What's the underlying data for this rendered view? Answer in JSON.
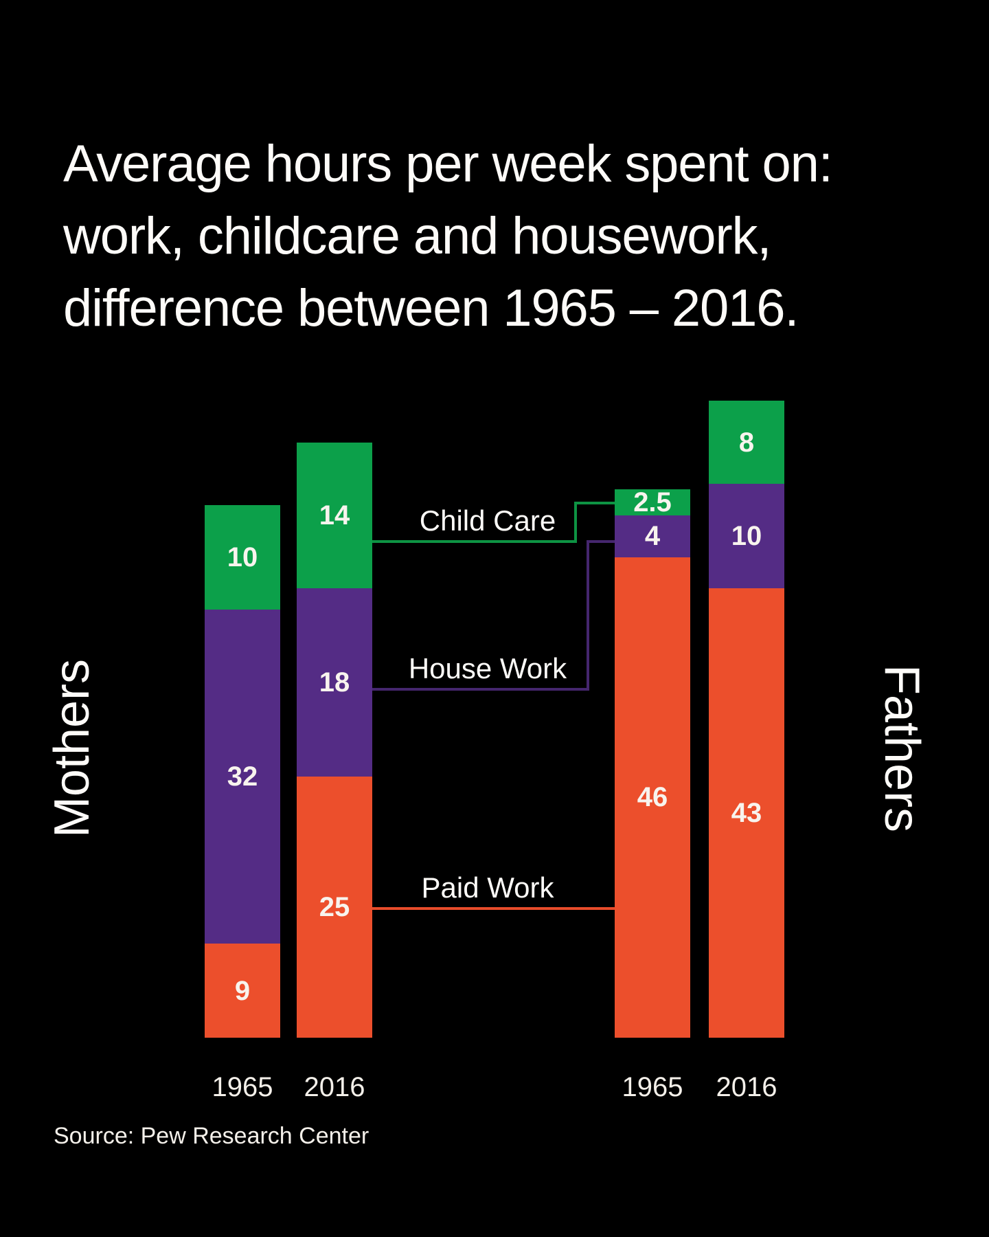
{
  "title": {
    "lines": [
      "Average hours per week spent on:",
      "work, childcare and housework,",
      "difference between 1965 – 2016."
    ]
  },
  "group_labels": {
    "left": "Mothers",
    "right": "Fathers"
  },
  "legend": {
    "child_care": "Child Care",
    "house_work": "House Work",
    "paid_work": "Paid Work"
  },
  "source": "Source: Pew Research Center",
  "colors": {
    "background": "#000000",
    "text": "#fdfbf8",
    "child_care": "#0ca04a",
    "house_work": "#542c85",
    "paid_work": "#ec4f2c",
    "child_care_line": "#0d9343",
    "house_work_line": "#45266e",
    "paid_work_line": "#e74c2a"
  },
  "chart_data": {
    "type": "bar",
    "stacked": true,
    "title": "Average hours per week spent on: work, childcare and housework, difference between 1965 – 2016.",
    "ylabel": "hours per week",
    "categories": [
      "Mothers 1965",
      "Mothers 2016",
      "Fathers 1965",
      "Fathers 2016"
    ],
    "segment_order_bottom_to_top": [
      "paid_work",
      "house_work",
      "child_care"
    ],
    "bars": [
      {
        "group": "Mothers",
        "year": "1965",
        "paid_work": 9,
        "house_work": 32,
        "child_care": 10
      },
      {
        "group": "Mothers",
        "year": "2016",
        "paid_work": 25,
        "house_work": 18,
        "child_care": 14
      },
      {
        "group": "Fathers",
        "year": "1965",
        "paid_work": 46,
        "house_work": 4,
        "child_care": 2.5
      },
      {
        "group": "Fathers",
        "year": "2016",
        "paid_work": 43,
        "house_work": 10,
        "child_care": 8
      }
    ]
  }
}
